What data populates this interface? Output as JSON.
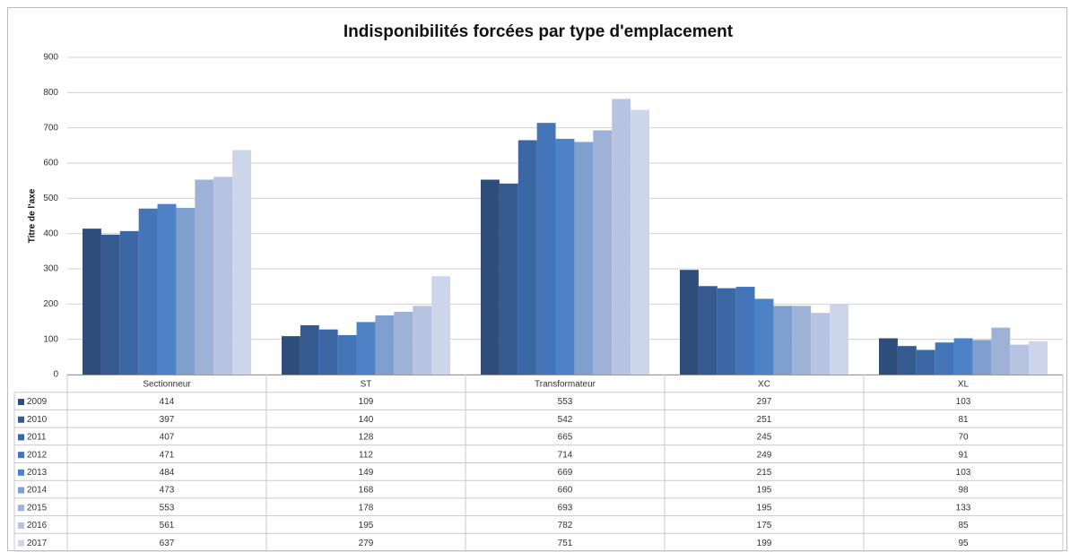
{
  "chart_data": {
    "type": "bar",
    "title": "Indisponibilités forcées par type d'emplacement",
    "y_axis_label": "Titre de l'axe",
    "categories": [
      "Sectionneur",
      "ST",
      "Transformateur",
      "XC",
      "XL"
    ],
    "series": [
      {
        "name": "2009",
        "color": "#2e4d7b",
        "values": [
          414,
          109,
          553,
          297,
          103
        ]
      },
      {
        "name": "2010",
        "color": "#355a90",
        "values": [
          397,
          140,
          542,
          251,
          81
        ]
      },
      {
        "name": "2011",
        "color": "#3c67a5",
        "values": [
          407,
          128,
          665,
          245,
          70
        ]
      },
      {
        "name": "2012",
        "color": "#4475b9",
        "values": [
          471,
          112,
          714,
          249,
          91
        ]
      },
      {
        "name": "2013",
        "color": "#4d82c6",
        "values": [
          484,
          149,
          669,
          215,
          103
        ]
      },
      {
        "name": "2014",
        "color": "#7f9fcf",
        "values": [
          473,
          168,
          660,
          195,
          98
        ]
      },
      {
        "name": "2015",
        "color": "#9eb2d7",
        "values": [
          553,
          178,
          693,
          195,
          133
        ]
      },
      {
        "name": "2016",
        "color": "#b6c3e1",
        "values": [
          561,
          195,
          782,
          175,
          85
        ]
      },
      {
        "name": "2017",
        "color": "#ccd5ea",
        "values": [
          637,
          279,
          751,
          199,
          95
        ]
      }
    ],
    "ylim": [
      0,
      900
    ],
    "yticks": [
      0,
      100,
      200,
      300,
      400,
      500,
      600,
      700,
      800,
      900
    ],
    "grid": true
  }
}
